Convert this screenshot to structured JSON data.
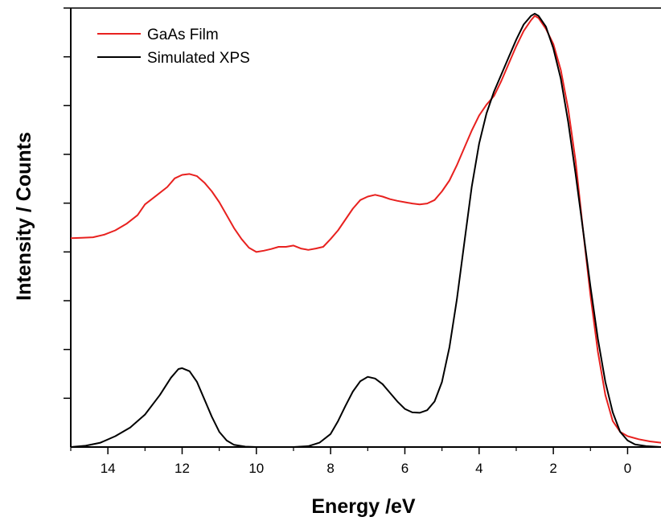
{
  "chart_data": {
    "type": "line",
    "xlabel": "Energy /eV",
    "ylabel": "Intensity / Counts",
    "xlim": [
      15,
      -0.9
    ],
    "ylim": [
      0,
      1
    ],
    "x_reversed": true,
    "x_ticks": [
      14,
      12,
      10,
      8,
      6,
      4,
      2,
      0
    ],
    "y_ticks_labeled": false,
    "y_tick_count": 9,
    "grid": false,
    "legend_position": "top-left",
    "series": [
      {
        "name": "GaAs Film",
        "color": "#e8211f",
        "points": [
          [
            15.0,
            0.482
          ],
          [
            14.7,
            0.483
          ],
          [
            14.4,
            0.484
          ],
          [
            14.1,
            0.49
          ],
          [
            13.8,
            0.5
          ],
          [
            13.5,
            0.515
          ],
          [
            13.2,
            0.535
          ],
          [
            13.0,
            0.56
          ],
          [
            12.7,
            0.58
          ],
          [
            12.4,
            0.6
          ],
          [
            12.2,
            0.62
          ],
          [
            12.0,
            0.628
          ],
          [
            11.8,
            0.63
          ],
          [
            11.6,
            0.625
          ],
          [
            11.4,
            0.61
          ],
          [
            11.2,
            0.59
          ],
          [
            11.0,
            0.565
          ],
          [
            10.8,
            0.535
          ],
          [
            10.6,
            0.505
          ],
          [
            10.4,
            0.48
          ],
          [
            10.2,
            0.46
          ],
          [
            10.0,
            0.45
          ],
          [
            9.8,
            0.453
          ],
          [
            9.6,
            0.457
          ],
          [
            9.4,
            0.462
          ],
          [
            9.2,
            0.462
          ],
          [
            9.0,
            0.465
          ],
          [
            8.8,
            0.458
          ],
          [
            8.6,
            0.455
          ],
          [
            8.4,
            0.458
          ],
          [
            8.2,
            0.462
          ],
          [
            8.0,
            0.48
          ],
          [
            7.8,
            0.5
          ],
          [
            7.6,
            0.525
          ],
          [
            7.4,
            0.55
          ],
          [
            7.2,
            0.57
          ],
          [
            7.0,
            0.578
          ],
          [
            6.8,
            0.582
          ],
          [
            6.6,
            0.578
          ],
          [
            6.4,
            0.572
          ],
          [
            6.2,
            0.568
          ],
          [
            6.0,
            0.565
          ],
          [
            5.8,
            0.562
          ],
          [
            5.6,
            0.56
          ],
          [
            5.4,
            0.562
          ],
          [
            5.2,
            0.57
          ],
          [
            5.0,
            0.59
          ],
          [
            4.8,
            0.615
          ],
          [
            4.6,
            0.65
          ],
          [
            4.4,
            0.69
          ],
          [
            4.2,
            0.73
          ],
          [
            4.0,
            0.765
          ],
          [
            3.8,
            0.79
          ],
          [
            3.6,
            0.81
          ],
          [
            3.4,
            0.845
          ],
          [
            3.2,
            0.885
          ],
          [
            3.0,
            0.925
          ],
          [
            2.8,
            0.96
          ],
          [
            2.6,
            0.985
          ],
          [
            2.5,
            0.995
          ],
          [
            2.4,
            0.99
          ],
          [
            2.2,
            0.965
          ],
          [
            2.0,
            0.93
          ],
          [
            1.8,
            0.87
          ],
          [
            1.6,
            0.78
          ],
          [
            1.4,
            0.66
          ],
          [
            1.2,
            0.5
          ],
          [
            1.0,
            0.35
          ],
          [
            0.8,
            0.22
          ],
          [
            0.6,
            0.12
          ],
          [
            0.4,
            0.06
          ],
          [
            0.2,
            0.035
          ],
          [
            0.0,
            0.025
          ],
          [
            -0.3,
            0.018
          ],
          [
            -0.6,
            0.013
          ],
          [
            -0.9,
            0.01
          ]
        ]
      },
      {
        "name": "Simulated XPS",
        "color": "#000000",
        "points": [
          [
            15.0,
            0.0
          ],
          [
            14.6,
            0.003
          ],
          [
            14.2,
            0.01
          ],
          [
            13.8,
            0.025
          ],
          [
            13.4,
            0.045
          ],
          [
            13.0,
            0.075
          ],
          [
            12.6,
            0.12
          ],
          [
            12.3,
            0.16
          ],
          [
            12.1,
            0.18
          ],
          [
            12.0,
            0.182
          ],
          [
            11.8,
            0.175
          ],
          [
            11.6,
            0.15
          ],
          [
            11.4,
            0.11
          ],
          [
            11.2,
            0.07
          ],
          [
            11.0,
            0.035
          ],
          [
            10.8,
            0.015
          ],
          [
            10.6,
            0.005
          ],
          [
            10.3,
            0.001
          ],
          [
            10.0,
            0.0
          ],
          [
            9.5,
            0.0
          ],
          [
            9.0,
            0.0
          ],
          [
            8.6,
            0.002
          ],
          [
            8.3,
            0.01
          ],
          [
            8.0,
            0.03
          ],
          [
            7.8,
            0.06
          ],
          [
            7.6,
            0.095
          ],
          [
            7.4,
            0.128
          ],
          [
            7.2,
            0.152
          ],
          [
            7.0,
            0.162
          ],
          [
            6.8,
            0.158
          ],
          [
            6.6,
            0.145
          ],
          [
            6.4,
            0.125
          ],
          [
            6.2,
            0.105
          ],
          [
            6.0,
            0.088
          ],
          [
            5.8,
            0.08
          ],
          [
            5.6,
            0.079
          ],
          [
            5.4,
            0.085
          ],
          [
            5.2,
            0.105
          ],
          [
            5.0,
            0.15
          ],
          [
            4.8,
            0.23
          ],
          [
            4.6,
            0.34
          ],
          [
            4.4,
            0.47
          ],
          [
            4.2,
            0.6
          ],
          [
            4.0,
            0.7
          ],
          [
            3.8,
            0.77
          ],
          [
            3.6,
            0.82
          ],
          [
            3.4,
            0.86
          ],
          [
            3.2,
            0.9
          ],
          [
            3.0,
            0.94
          ],
          [
            2.8,
            0.975
          ],
          [
            2.6,
            0.995
          ],
          [
            2.5,
            1.0
          ],
          [
            2.4,
            0.995
          ],
          [
            2.2,
            0.97
          ],
          [
            2.0,
            0.92
          ],
          [
            1.8,
            0.85
          ],
          [
            1.6,
            0.75
          ],
          [
            1.4,
            0.63
          ],
          [
            1.2,
            0.5
          ],
          [
            1.0,
            0.37
          ],
          [
            0.8,
            0.25
          ],
          [
            0.6,
            0.15
          ],
          [
            0.4,
            0.08
          ],
          [
            0.2,
            0.035
          ],
          [
            0.0,
            0.015
          ],
          [
            -0.2,
            0.006
          ],
          [
            -0.5,
            0.002
          ],
          [
            -0.9,
            0.0
          ]
        ]
      }
    ]
  }
}
